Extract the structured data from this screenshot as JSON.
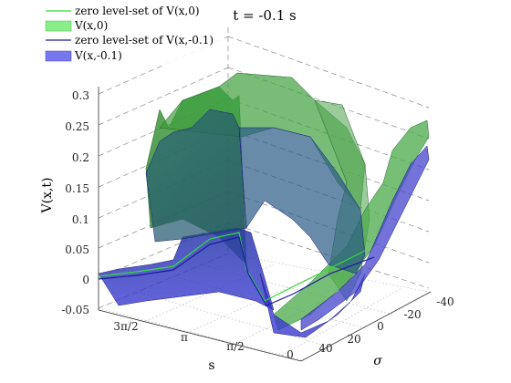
{
  "chart_data": {
    "type": "surface",
    "title": "t = -0.1 s",
    "xlabel": "s",
    "ylabel": "σ",
    "zlabel": "V(x,t)",
    "z_ticks": [
      "0.3",
      "0.25",
      "0.2",
      "0.15",
      "0.1",
      "0.05",
      "0",
      "-0.05"
    ],
    "z_values": [
      0.3,
      0.25,
      0.2,
      0.15,
      0.1,
      0.05,
      0,
      -0.05
    ],
    "zlim": [
      -0.05,
      0.33
    ],
    "x_ticks": [
      "3π/2",
      "π",
      "π/2",
      "0"
    ],
    "y_ticks": [
      "-40",
      "-20",
      "0",
      "20",
      "40"
    ],
    "legend_position": "top-left",
    "legend": [
      {
        "label": "zero level-set of V(x,0)",
        "kind": "line",
        "color": "#33dd33"
      },
      {
        "label": "V(x,0)",
        "kind": "patch",
        "color": "#88ee88"
      },
      {
        "label": "zero level-set of V(x,-0.1)",
        "kind": "line",
        "color": "#1a1aa0"
      },
      {
        "label": "V(x,-0.1)",
        "kind": "patch",
        "color": "#7777ee"
      }
    ],
    "series": [
      {
        "name": "V(x,0)",
        "color": "#2f8f2f",
        "profile": [
          0.0,
          0.25,
          0.32,
          0.3,
          0.25,
          0.1,
          -0.04,
          0.02,
          0.1,
          0.22
        ]
      },
      {
        "name": "V(x,-0.1)",
        "color": "#2f2fb0",
        "profile": [
          -0.02,
          0.18,
          0.24,
          0.22,
          0.19,
          0.08,
          -0.06,
          0.0,
          0.08,
          0.18
        ]
      }
    ]
  },
  "colors": {
    "green_surface": "#2e8b2e",
    "blue_surface": "#2a2ab4",
    "grid": "#888888"
  }
}
